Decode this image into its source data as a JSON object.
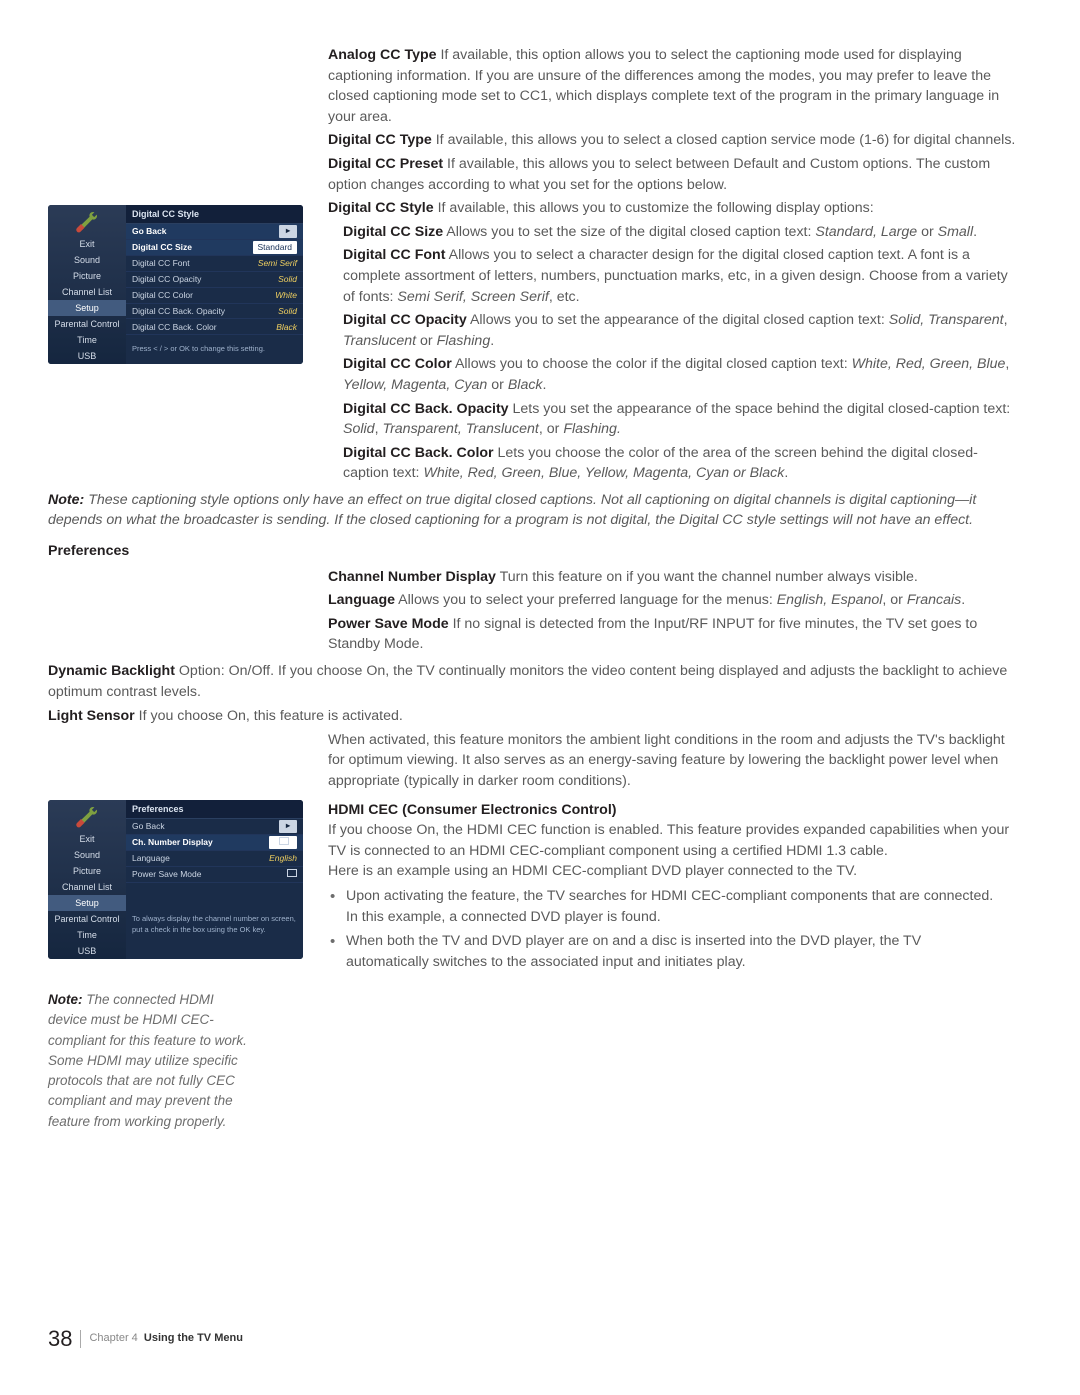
{
  "osd1": {
    "title": "Digital CC Style",
    "sidebar": [
      "Exit",
      "Sound",
      "Picture",
      "Channel List",
      "Setup",
      "Parental Control",
      "Time",
      "USB"
    ],
    "sidebar_sel": "Setup",
    "rows": [
      {
        "lab": "Go Back",
        "val": "▸",
        "hl": true,
        "arrow": true
      },
      {
        "lab": "Digital CC Size",
        "val": "Standard",
        "sel": true
      },
      {
        "lab": "Digital CC Font",
        "val": "Semi Serif"
      },
      {
        "lab": "Digital CC Opacity",
        "val": "Solid"
      },
      {
        "lab": "Digital CC Color",
        "val": "White"
      },
      {
        "lab": "Digital CC Back. Opacity",
        "val": "Solid"
      },
      {
        "lab": "Digital CC Back. Color",
        "val": "Black"
      }
    ],
    "help": "Press < / > or OK to change this setting."
  },
  "osd2": {
    "title": "Preferences",
    "sidebar": [
      "Exit",
      "Sound",
      "Picture",
      "Channel List",
      "Setup",
      "Parental Control",
      "Time",
      "USB"
    ],
    "sidebar_sel": "Setup",
    "rows": [
      {
        "lab": "Go Back",
        "val": "▸",
        "arrow": true
      },
      {
        "lab": "Ch. Number Display",
        "val": "☐",
        "hl": true,
        "box": true
      },
      {
        "lab": "Language",
        "val": "English",
        "valit": true
      },
      {
        "lab": "Power Save Mode",
        "val": "☐",
        "box": true
      }
    ],
    "help": "To always display the channel number on screen, put a check in the box using the OK key."
  },
  "body": {
    "analog_h": "Analog CC Type",
    "analog_t": "  If available, this option allows you to select the captioning mode used for displaying captioning information. If you are unsure of the differences among the modes, you may prefer to leave the closed captioning mode set to CC1, which displays complete text of the program in the primary language in your area.",
    "dcct_h": "Digital CC Type",
    "dcct_t": "  If available, this allows you to select a closed caption service mode (1-6) for digital channels.",
    "dccp_h": "Digital CC Preset",
    "dccp_t": "  If available, this allows you to select between Default and Custom options. The custom option changes according to what you set for the options below.",
    "dccs_h": "Digital CC Style",
    "dccs_t": "  If available, this allows you to customize the following display options:",
    "size_h": "Digital CC Size",
    "size_t1": "  Allows you to set the size of the digital closed caption text: ",
    "size_it": "Standard, Large",
    "size_t2": " or ",
    "size_it2": "Small",
    "size_t3": ".",
    "font_h": "Digital CC Font",
    "font_t1": "  Allows you to select a character design for the digital closed caption text.  A font is a complete assortment of letters, numbers, punctuation marks, etc, in a given design. Choose from a variety of fonts: ",
    "font_it": "Semi Serif, Screen Serif",
    "font_t2": ", etc.",
    "op_h": "Digital CC Opacity",
    "op_t1": "  Allows you to set the appearance of the digital closed caption text: ",
    "op_it": "Solid, Transparent",
    "op_c": ", ",
    "op_it2": "Translucent",
    "op_or": " or ",
    "op_it3": "Flashing",
    "op_p": ".",
    "col_h": "Digital CC Color",
    "col_t1": "  Allows you to choose the color if the digital closed caption text: ",
    "col_it": "White, Red, Green, Blue",
    "col_c": ", ",
    "col_it2": "Yellow, Magenta, Cyan",
    "col_or": " or ",
    "col_it3": "Black",
    "col_p": ".",
    "bo_h": "Digital CC Back. Opacity",
    "bo_t1": "    Lets you set the appearance of the space behind the digital closed-caption text: ",
    "bo_it": "Solid",
    "bo_c": ", ",
    "bo_it2": "Transparent, Translucent",
    "bo_or": ", or ",
    "bo_it3": "Flashing.",
    "bc_h": "Digital CC Back. Color",
    "bc_t1": "    Lets you choose the color of the area of the screen behind the digital closed-caption text: ",
    "bc_it": "White, Red, Green, Blue, Yellow, Magenta, Cyan or Black",
    "bc_p": ".",
    "note1_h": "Note:",
    "note1_t": " These captioning style options only have an effect on true digital closed captions. Not all captioning on digital channels is digital captioning—it depends on what the broadcaster is sending.  If the closed captioning for a program is not digital, the Digital CC style settings will not have an effect.",
    "prefs_h": "Preferences",
    "cnd_h": "Channel Number Display",
    "cnd_t": "  Turn this feature on if you want the channel number always visible.",
    "lang_h": "Language",
    "lang_t1": "  Allows you to select your preferred language for the menus: ",
    "lang_it": "English, Espanol",
    "lang_or": ", or ",
    "lang_it2": "Francais",
    "lang_p": ".",
    "psm_h": "Power Save Mode",
    "psm_t": "  If no signal is detected from the Input/RF INPUT for five minutes, the TV set goes to Standby Mode.",
    "db_h": "Dynamic Backlight",
    "db_t": "  Option: On/Off. If you choose On, the TV continually monitors the video content being displayed and adjusts the backlight to achieve optimum contrast levels.",
    "ls_h": "Light Sensor",
    "ls_t": "  If you choose On, this feature is activated.",
    "ls_t2": "When activated, this feature monitors the ambient light conditions in the room and adjusts the TV's backlight for optimum viewing. It also serves as an energy-saving feature by lowering the backlight power level when appropriate (typically in darker room conditions).",
    "cec_h": "HDMI CEC (Consumer Electronics Control)",
    "cec_t1": "If you choose On, the HDMI CEC function is enabled.  This feature provides expanded capabilities when your TV is connected to an HDMI CEC-compliant component using a certified HDMI 1.3 cable.",
    "cec_t2": "Here is an example using an HDMI CEC-compliant DVD player connected to the TV.",
    "cec_b1": "Upon activating the feature, the TV searches for HDMI CEC-compliant components that are connected. In this example, a connected DVD player is found.",
    "cec_b2": "When both the TV and DVD player are on and a disc is inserted into the DVD player, the TV automatically switches to the associated input and initiates play."
  },
  "sidenote": {
    "h": "Note:",
    "t": " The connected HDMI device must be HDMI CEC-compliant for this feature to work. Some HDMI may utilize specific protocols that are not fully CEC compliant and may prevent the feature from working properly."
  },
  "footer": {
    "page": "38",
    "chap": "Chapter 4",
    "title": "Using the TV Menu"
  },
  "colors": {
    "body_text": "#5a5a5a",
    "bold": "#231f20",
    "osd_bg": "#15263f",
    "osd_val": "#f0d060"
  }
}
